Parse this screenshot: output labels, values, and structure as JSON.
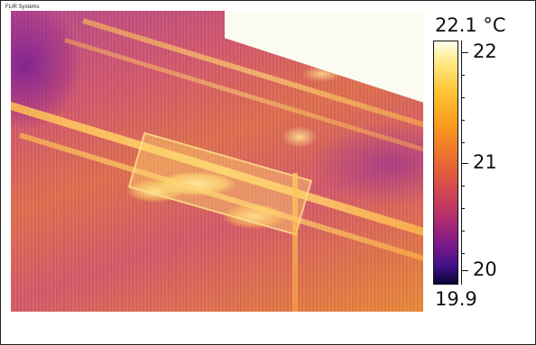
{
  "header": {
    "brand": "FLIR Systems"
  },
  "image": {
    "description_icon": "thermal-image"
  },
  "scale": {
    "max_label": "22.1 °C",
    "min_label": "19.9",
    "ticks": [
      {
        "label": "22",
        "value": 22
      },
      {
        "label": "21",
        "value": 21
      },
      {
        "label": "20",
        "value": 20
      }
    ],
    "colors": {
      "hot": "#fffff0",
      "warm": "#f99a1e",
      "mid": "#d84b4d",
      "cool": "#7c1a8a",
      "cold": "#0a0633"
    }
  }
}
